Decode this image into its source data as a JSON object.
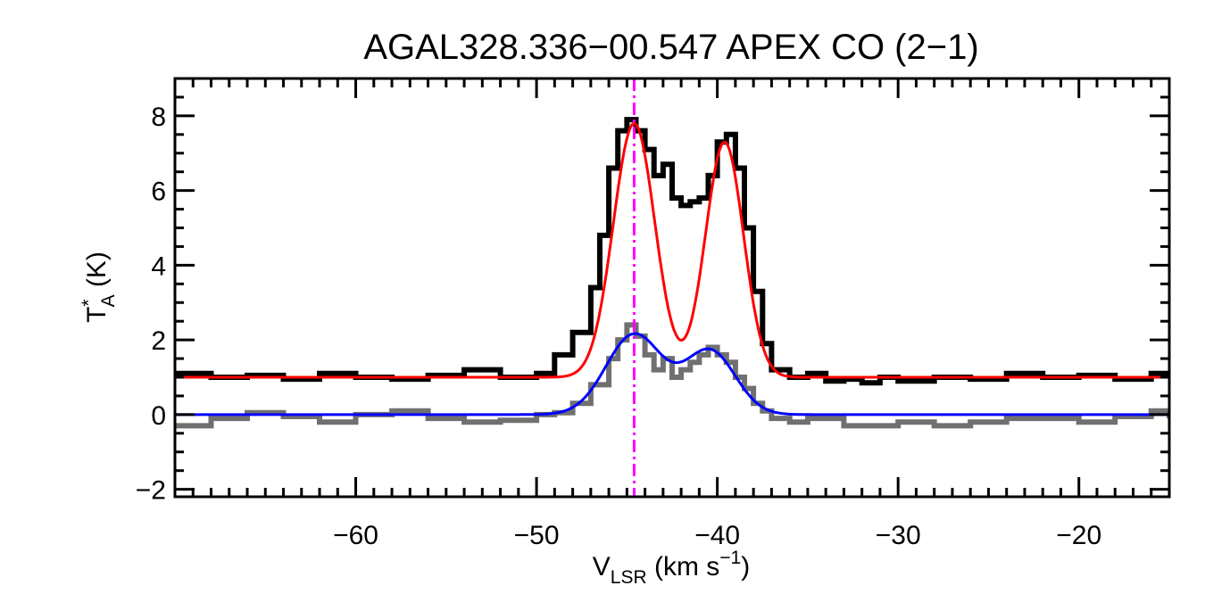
{
  "chart_data": {
    "type": "line",
    "title": "AGAL328.336−00.547  APEX CO (2−1)",
    "xlabel": {
      "main": "V",
      "sub": "LSR",
      "unit_pre": " (km s",
      "sup": "−1",
      "unit_post": ")"
    },
    "ylabel": {
      "main": "T",
      "sup": "*",
      "sub": "A",
      "unit": " (K)"
    },
    "xlim": [
      -70,
      -15
    ],
    "ylim": [
      -2.2,
      9.0
    ],
    "xticks": [
      -60,
      -50,
      -40,
      -30,
      -20
    ],
    "xtick_labels": [
      "−60",
      "−50",
      "−40",
      "−30",
      "−20"
    ],
    "yticks": [
      -2,
      0,
      2,
      4,
      6,
      8
    ],
    "ytick_labels": [
      "−2",
      "0",
      "2",
      "4",
      "6",
      "8"
    ],
    "reference_velocity": -44.6,
    "grid": false,
    "series": [
      {
        "role": "observed spectrum (offset)",
        "color": "#000000",
        "style": "histogram",
        "x": [
          -70,
          -68,
          -66,
          -64,
          -62,
          -60,
          -58,
          -56,
          -54,
          -52,
          -50,
          -49,
          -48,
          -47,
          -46.5,
          -46,
          -45.5,
          -45,
          -44.5,
          -44,
          -43.5,
          -43,
          -42.5,
          -42,
          -41.5,
          -41,
          -40.5,
          -40,
          -39.5,
          -39,
          -38.5,
          -38,
          -37.5,
          -37,
          -36,
          -35,
          -34,
          -33,
          -32,
          -31,
          -30,
          -28,
          -26,
          -24,
          -22,
          -20,
          -18,
          -16,
          -15
        ],
        "y": [
          1.1,
          1.0,
          1.05,
          0.95,
          1.1,
          1.0,
          0.95,
          1.05,
          1.2,
          1.0,
          1.1,
          1.6,
          2.2,
          3.4,
          4.8,
          6.6,
          7.6,
          7.9,
          7.6,
          7.1,
          6.4,
          6.7,
          5.8,
          5.6,
          5.7,
          5.8,
          6.4,
          7.3,
          7.5,
          6.6,
          5.0,
          3.3,
          1.9,
          1.2,
          1.0,
          1.1,
          0.9,
          0.95,
          0.85,
          1.0,
          0.9,
          1.0,
          0.95,
          1.1,
          1.0,
          1.05,
          0.95,
          1.1,
          1.0
        ]
      },
      {
        "role": "observed spectrum",
        "color": "#707070",
        "style": "histogram",
        "x": [
          -70,
          -68,
          -66,
          -64,
          -62,
          -60,
          -58,
          -56,
          -54,
          -52,
          -50,
          -49,
          -48,
          -47,
          -46,
          -45.5,
          -45,
          -44.5,
          -44,
          -43.5,
          -43,
          -42.5,
          -42,
          -41.5,
          -41,
          -40.5,
          -40,
          -39.5,
          -39,
          -38.5,
          -38,
          -37.5,
          -37,
          -36,
          -35,
          -33,
          -30,
          -28,
          -26,
          -24,
          -22,
          -20,
          -18,
          -16,
          -15
        ],
        "y": [
          -0.3,
          -0.1,
          0.05,
          -0.05,
          -0.2,
          0.0,
          0.1,
          -0.1,
          -0.2,
          -0.15,
          0.0,
          0.05,
          0.3,
          0.8,
          1.5,
          2.0,
          2.4,
          2.1,
          1.6,
          1.2,
          1.5,
          1.0,
          1.2,
          1.4,
          1.6,
          1.8,
          1.6,
          1.4,
          1.0,
          0.7,
          0.3,
          0.1,
          -0.1,
          -0.2,
          -0.1,
          -0.3,
          -0.2,
          -0.3,
          -0.2,
          -0.1,
          -0.1,
          -0.2,
          -0.05,
          0.1,
          -0.1
        ]
      },
      {
        "role": "model fit (offset)",
        "color": "#ff0000",
        "style": "smooth",
        "model": {
          "offset": 1.0,
          "components": [
            {
              "amp": 6.8,
              "center": -44.6,
              "sigma": 1.15
            },
            {
              "amp": 6.3,
              "center": -39.6,
              "sigma": 1.05
            }
          ]
        }
      },
      {
        "role": "model fit",
        "color": "#0000ff",
        "style": "smooth",
        "model": {
          "offset": 0.0,
          "components": [
            {
              "amp": 2.15,
              "center": -44.6,
              "sigma": 1.55
            },
            {
              "amp": 1.7,
              "center": -40.4,
              "sigma": 1.4
            }
          ]
        }
      }
    ],
    "reference_color": "#ff00ff"
  }
}
